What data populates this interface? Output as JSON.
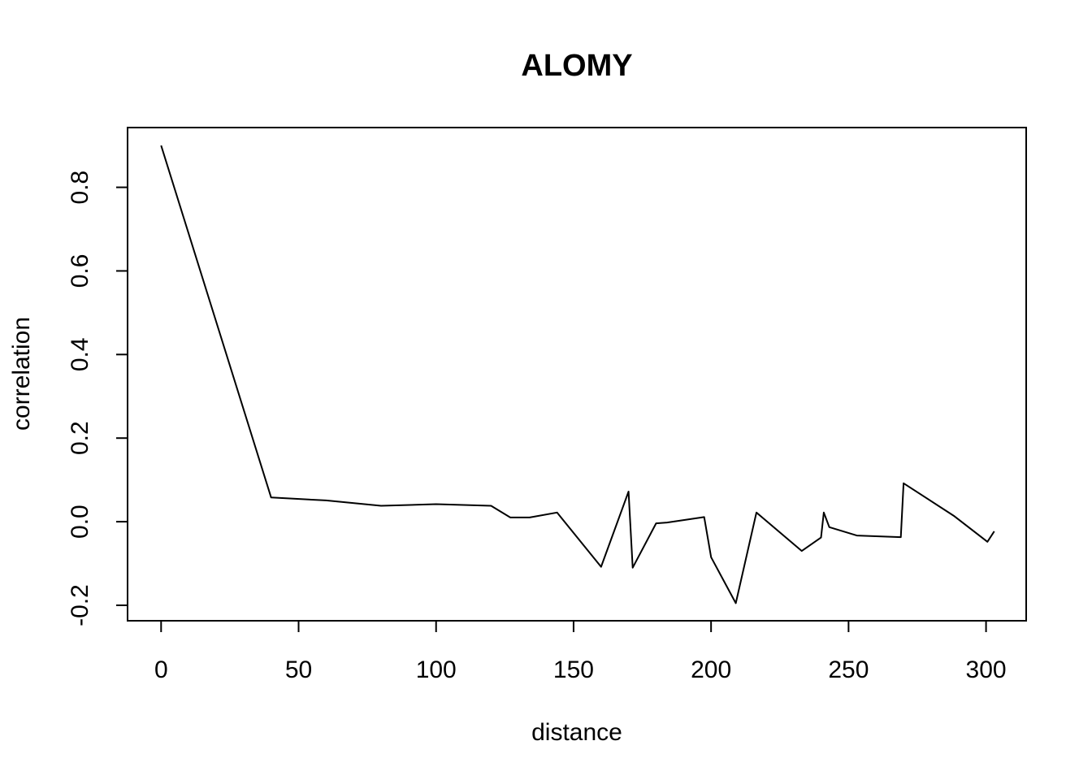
{
  "chart_data": {
    "type": "line",
    "title": "ALOMY",
    "xlabel": "distance",
    "ylabel": "correlation",
    "xlim": [
      -12.2,
      314.6
    ],
    "ylim": [
      -0.237,
      0.943
    ],
    "x_ticks": [
      0,
      50,
      100,
      150,
      200,
      250,
      300
    ],
    "x_tick_labels": [
      "0",
      "50",
      "100",
      "150",
      "200",
      "250",
      "300"
    ],
    "y_ticks": [
      -0.2,
      0.0,
      0.2,
      0.4,
      0.6,
      0.8
    ],
    "y_tick_labels": [
      "-0.2",
      "0.0",
      "0.2",
      "0.4",
      "0.6",
      "0.8"
    ],
    "grid": false,
    "legend": "none",
    "line_color": "#000000",
    "series": [
      {
        "x": [
          0,
          40,
          60,
          80,
          100,
          120,
          127,
          134,
          144,
          160,
          170,
          171.5,
          180,
          184,
          197.5,
          200,
          209,
          216.5,
          233,
          240,
          241,
          243,
          253,
          269,
          270,
          288.5,
          300.5,
          303
        ],
        "y": [
          0.9,
          0.058,
          0.051,
          0.038,
          0.042,
          0.038,
          0.01,
          0.01,
          0.022,
          -0.108,
          0.072,
          -0.11,
          -0.004,
          -0.002,
          0.011,
          -0.085,
          -0.195,
          0.022,
          -0.07,
          -0.038,
          0.022,
          -0.013,
          -0.033,
          -0.037,
          0.092,
          0.013,
          -0.048,
          -0.023
        ]
      }
    ]
  }
}
